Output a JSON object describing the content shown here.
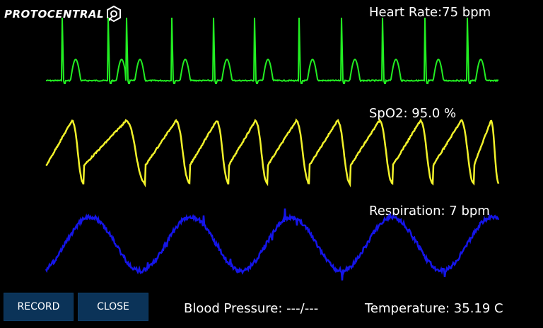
{
  "brand": {
    "name": "PROTOCENTRAL"
  },
  "vitals": {
    "heart_rate": "Heart Rate:75 bpm",
    "spo2": "SpO2: 95.0 %",
    "respiration": "Respiration: 7 bpm",
    "blood_pressure": "Blood Pressure: ---/---",
    "temperature": "Temperature: 35.19 C"
  },
  "buttons": {
    "record": "RECORD",
    "close": "CLOSE"
  },
  "colors": {
    "ecg": "#22ee22",
    "ppg": "#f2f22a",
    "resp": "#1515e8",
    "button_bg": "#0b3358"
  }
}
